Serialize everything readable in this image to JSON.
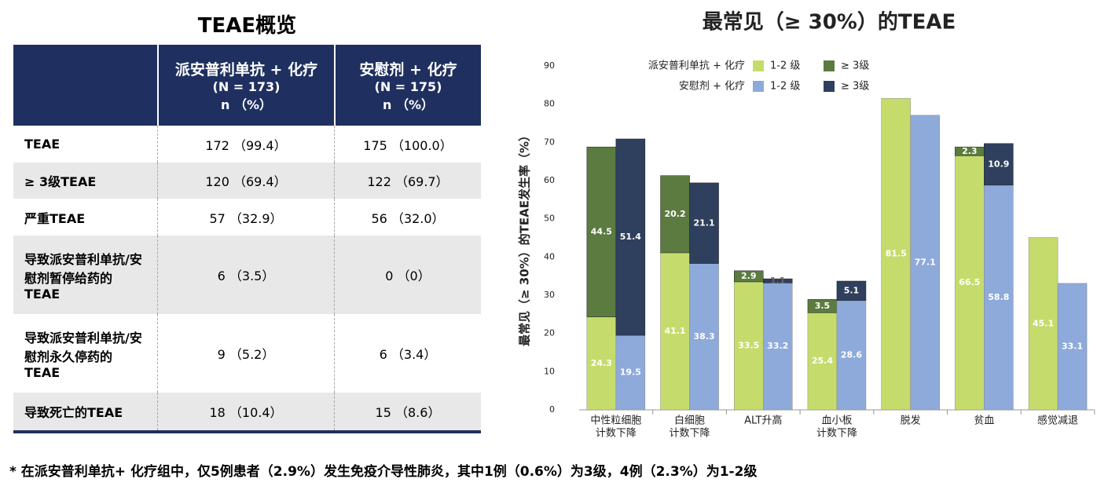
{
  "table": {
    "title": "TEAE概览",
    "header": [
      [],
      [
        "派安普利单抗 + 化疗",
        "(N = 173)",
        "n （%）"
      ],
      [
        "安慰剂 + 化疗",
        "(N = 175)",
        "n （%）"
      ]
    ],
    "rows": [
      [
        "TEAE",
        "172 （99.4）",
        "175 （100.0）"
      ],
      [
        "≥ 3级TEAE",
        "120 （69.4）",
        "122 （69.7）"
      ],
      [
        "严重TEAE",
        "57 （32.9）",
        "56 （32.0）"
      ],
      [
        "导致派安普利单抗/安慰剂暂停给药的TEAE",
        "6 （3.5）",
        "0 （0）"
      ],
      [
        "导致派安普利单抗/安慰剂永久停药的TEAE",
        "9 （5.2）",
        "6 （3.4）"
      ],
      [
        "导致死亡的TEAE",
        "18 （10.4）",
        "15 （8.6）"
      ]
    ]
  },
  "chart_data": {
    "type": "bar",
    "stacked": true,
    "title": "最常见（≥ 30%）的TEAE",
    "ylabel": "最常见（≥ 30%）的TEAE发生率（%）",
    "categories": [
      [
        "中性粒细胞",
        "计数下降"
      ],
      [
        "白细胞",
        "计数下降"
      ],
      [
        "ALT升高"
      ],
      [
        "血小板",
        "计数下降"
      ],
      [
        "脱发"
      ],
      [
        "贫血"
      ],
      [
        "感觉减退"
      ]
    ],
    "series": [
      {
        "name": "1-2 级",
        "stack": "派安普利单抗 + 化疗",
        "color": "#c5dc6c",
        "values": [
          24.3,
          41.1,
          33.5,
          25.4,
          81.5,
          66.5,
          45.1
        ]
      },
      {
        "name": "≥ 3级",
        "stack": "派安普利单抗 + 化疗",
        "color": "#5b7b40",
        "values": [
          44.5,
          20.2,
          2.9,
          3.5,
          null,
          2.3,
          null
        ]
      },
      {
        "name": "1-2 级",
        "stack": "安慰剂 + 化疗",
        "color": "#8eaadb",
        "values": [
          19.5,
          38.3,
          33.2,
          28.6,
          77.1,
          58.8,
          33.1
        ]
      },
      {
        "name": "≥ 3级",
        "stack": "安慰剂 + 化疗",
        "color": "#2f3f5e",
        "values": [
          51.4,
          21.1,
          1.1,
          5.1,
          null,
          10.9,
          null
        ]
      }
    ],
    "ylim": [
      0,
      90
    ],
    "yticks": [
      0,
      10,
      20,
      30,
      40,
      50,
      60,
      70,
      80,
      90
    ],
    "grid": false
  },
  "footnote": "* 在派安普利单抗+ 化疗组中，仅5例患者（2.9%）发生免疫介导性肺炎，其中1例（0.6%）为3级，4例（2.3%）为1-2级"
}
